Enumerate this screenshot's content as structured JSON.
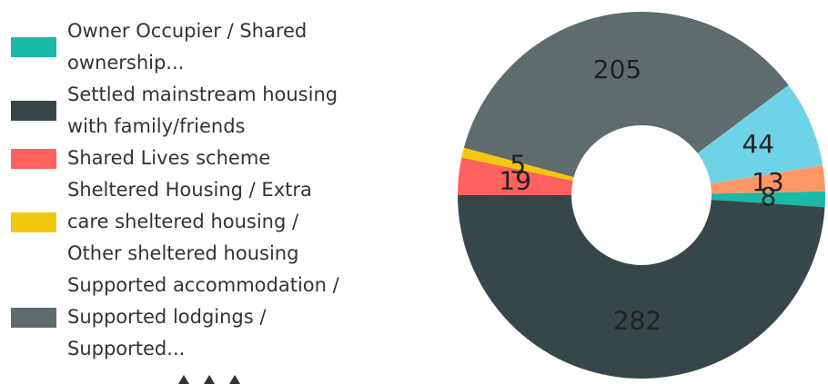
{
  "chart_data": {
    "type": "donut",
    "categories": [
      "Owner Occupier / Shared ownership...",
      "Settled mainstream housing with family/friends",
      "Shared Lives scheme",
      "Sheltered Housing / Extra care sheltered housing / Other sheltered housing",
      "Supported accommodation / Supported lodgings / Supported...",
      null,
      null
    ],
    "values": [
      8,
      282,
      19,
      5,
      205,
      44,
      13
    ],
    "colors": [
      "#1ab8a6",
      "#374649",
      "#fd625e",
      "#f2c80f",
      "#5f6b6d",
      "#6fd3e8",
      "#fe9666"
    ],
    "legend": "left"
  }
}
